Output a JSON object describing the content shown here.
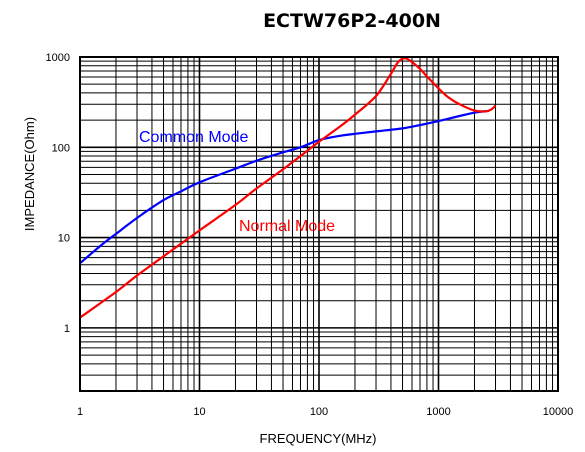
{
  "chart_data": {
    "type": "line",
    "title": "ECTW76P2-400N",
    "xlabel": "FREQUENCY(MHz)",
    "ylabel": "IMPEDANCE(Ohm)",
    "xscale": "log",
    "yscale": "log",
    "xlim": [
      1,
      10000
    ],
    "ylim": [
      0.2,
      1000
    ],
    "xticks": [
      "1",
      "10",
      "100",
      "1000",
      "10000"
    ],
    "yticks": [
      "1",
      "10",
      "100",
      "1000"
    ],
    "grid": true,
    "series": [
      {
        "name": "Common Mode",
        "color": "#0000ff",
        "x": [
          1,
          1.5,
          2,
          3,
          5,
          7,
          10,
          20,
          30,
          50,
          70,
          100,
          150,
          200,
          300,
          500,
          700,
          1000,
          1500,
          2000,
          2500
        ],
        "y": [
          5.2,
          8.2,
          11,
          16.5,
          26,
          32.5,
          41,
          58,
          71,
          88,
          100,
          120,
          134,
          141,
          150,
          162,
          176,
          195,
          222,
          242,
          252
        ]
      },
      {
        "name": "Normal Mode",
        "color": "#ff0000",
        "x": [
          1,
          2,
          3,
          5,
          10,
          20,
          30,
          50,
          100,
          150,
          200,
          300,
          400,
          450,
          500,
          550,
          600,
          700,
          800,
          1000,
          1200,
          1500,
          2000,
          2500,
          2800,
          3000
        ],
        "y": [
          1.3,
          2.5,
          3.8,
          6.2,
          12,
          23,
          35,
          57,
          115,
          170,
          230,
          370,
          650,
          850,
          960,
          950,
          880,
          740,
          610,
          450,
          360,
          300,
          255,
          250,
          265,
          290
        ]
      }
    ]
  }
}
